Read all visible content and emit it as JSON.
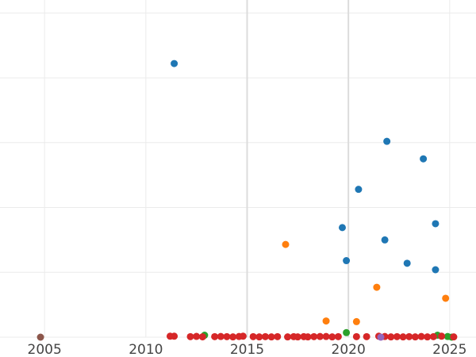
{
  "chart_data": {
    "type": "scatter",
    "title": "",
    "xlabel": "",
    "ylabel": "",
    "xlim": [
      2002.8,
      2026.3
    ],
    "ylim": [
      0,
      520
    ],
    "x_ticks": [
      2005,
      2010,
      2015,
      2020,
      2025
    ],
    "x_tick_labels": [
      "2005",
      "2010",
      "2015",
      "2020",
      "2025"
    ],
    "y_gridlines": [
      0,
      100,
      200,
      300,
      400,
      500
    ],
    "grid": true,
    "highlight_vlines": [
      2015,
      2020
    ],
    "legend": "none",
    "series": [
      {
        "color": "#1f77b4",
        "points": [
          [
            2011.4,
            422
          ],
          [
            2021.9,
            302
          ],
          [
            2023.7,
            275
          ],
          [
            2020.5,
            228
          ],
          [
            2019.7,
            169
          ],
          [
            2024.3,
            175
          ],
          [
            2021.8,
            150
          ],
          [
            2019.9,
            118
          ],
          [
            2022.9,
            114
          ],
          [
            2024.3,
            104
          ]
        ]
      },
      {
        "color": "#ff7f0e",
        "points": [
          [
            2016.9,
            143
          ],
          [
            2021.4,
            77
          ],
          [
            2024.8,
            60
          ],
          [
            2018.9,
            25
          ],
          [
            2020.4,
            24
          ]
        ]
      },
      {
        "color": "#2ca02c",
        "points": [
          [
            2012.9,
            3
          ],
          [
            2019.9,
            7
          ],
          [
            2024.4,
            3
          ],
          [
            2024.9,
            1
          ],
          [
            2025.1,
            0
          ]
        ]
      },
      {
        "color": "#d62728",
        "points": [
          [
            2011.2,
            1.5
          ],
          [
            2011.4,
            1.5
          ],
          [
            2012.2,
            0.8
          ],
          [
            2012.5,
            1.2
          ],
          [
            2012.8,
            0.5
          ],
          [
            2013.4,
            0.8
          ],
          [
            2013.7,
            1.0
          ],
          [
            2014.0,
            0.8
          ],
          [
            2014.3,
            0.4
          ],
          [
            2014.6,
            1.0
          ],
          [
            2014.8,
            1.5
          ],
          [
            2015.3,
            0.8
          ],
          [
            2015.6,
            0.4
          ],
          [
            2015.9,
            0.8
          ],
          [
            2016.2,
            0.4
          ],
          [
            2016.5,
            0.8
          ],
          [
            2017.0,
            0.4
          ],
          [
            2017.3,
            0.8
          ],
          [
            2017.5,
            0.4
          ],
          [
            2017.8,
            0.8
          ],
          [
            2018.0,
            0.4
          ],
          [
            2018.3,
            0.8
          ],
          [
            2018.6,
            1.0
          ],
          [
            2018.9,
            1.0
          ],
          [
            2019.2,
            0.4
          ],
          [
            2019.5,
            0.8
          ],
          [
            2020.4,
            0.8
          ],
          [
            2020.9,
            0.8
          ],
          [
            2021.5,
            1.5
          ],
          [
            2021.8,
            1.0
          ],
          [
            2022.1,
            0.4
          ],
          [
            2022.4,
            0.8
          ],
          [
            2022.7,
            0.4
          ],
          [
            2023.0,
            0.8
          ],
          [
            2023.3,
            0.4
          ],
          [
            2023.6,
            1.0
          ],
          [
            2023.9,
            0.4
          ],
          [
            2024.2,
            0.8
          ],
          [
            2024.6,
            1.5
          ],
          [
            2025.2,
            0.4
          ]
        ]
      },
      {
        "color": "#9467bd",
        "points": [
          [
            2021.6,
            0
          ]
        ]
      },
      {
        "color": "#8c564b",
        "points": [
          [
            2004.8,
            0
          ]
        ]
      }
    ]
  }
}
